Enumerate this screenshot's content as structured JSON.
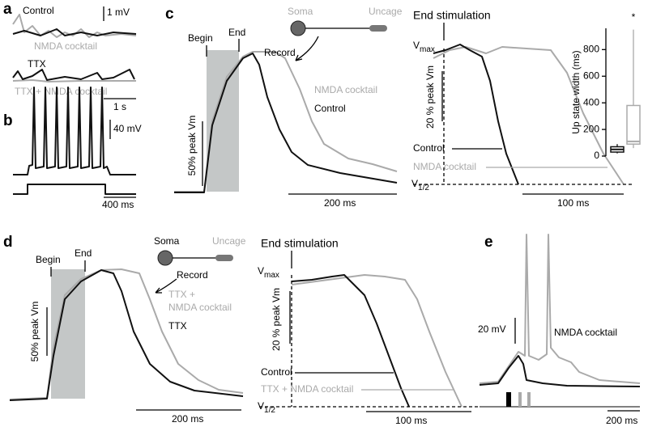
{
  "panels": {
    "a": {
      "label": "a",
      "control": "Control",
      "scale_v": "1 mV",
      "nmda": "NMDA cocktail",
      "ttx": "TTX",
      "ttx_nmda": "TTX + NMDA cocktail",
      "scale_t": "1 s"
    },
    "b": {
      "label": "b",
      "scale_v": "40 mV",
      "scale_t": "400 ms"
    },
    "c": {
      "label": "c",
      "begin": "Begin",
      "end": "End",
      "soma": "Soma",
      "uncage": "Uncage",
      "record": "Record",
      "ylabel": "50% peak Vm",
      "nmda": "NMDA cocktail",
      "control": "Control",
      "scale_t": "200 ms",
      "right": {
        "end_stim": "End stimulation",
        "vmax": {
          "main": "V",
          "sub": "max"
        },
        "ylabel": "20 % peak Vm",
        "control": "Control",
        "nmda": "NMDA cocktail",
        "vhalf": {
          "main": "V",
          "sub": "1/2"
        },
        "scale_t": "100 ms"
      }
    },
    "d": {
      "label": "d",
      "begin": "Begin",
      "end": "End",
      "soma": "Soma",
      "uncage": "Uncage",
      "record": "Record",
      "ylabel": "50% peak Vm",
      "ttx_nmda_1": "TTX +",
      "ttx_nmda_2": "NMDA cocktail",
      "ttx": "TTX",
      "scale_t": "200 ms",
      "right": {
        "end_stim": "End stimulation",
        "vmax": {
          "main": "V",
          "sub": "max"
        },
        "ylabel": "20 % peak Vm",
        "control": "Control",
        "ttx_nmda": "TTX + NMDA cocktail",
        "vhalf": {
          "main": "V",
          "sub": "1/2"
        },
        "scale_t": "100 ms"
      }
    },
    "e": {
      "label": "e",
      "scale_v": "20 mV",
      "nmda": "NMDA cocktail",
      "scale_t": "200 ms"
    }
  },
  "chart_data": {
    "type": "box",
    "ylabel": "Up state width (ms)",
    "annotation": "*",
    "ylim": [
      0,
      960
    ],
    "yticks": [
      0,
      200,
      400,
      600,
      800
    ],
    "boxes": [
      {
        "color": "#111",
        "min": 20,
        "q1": 30,
        "median": 50,
        "q3": 70,
        "max": 90
      },
      {
        "color": "#aaa",
        "min": 60,
        "q1": 90,
        "median": 110,
        "q3": 380,
        "max": 950
      }
    ]
  }
}
